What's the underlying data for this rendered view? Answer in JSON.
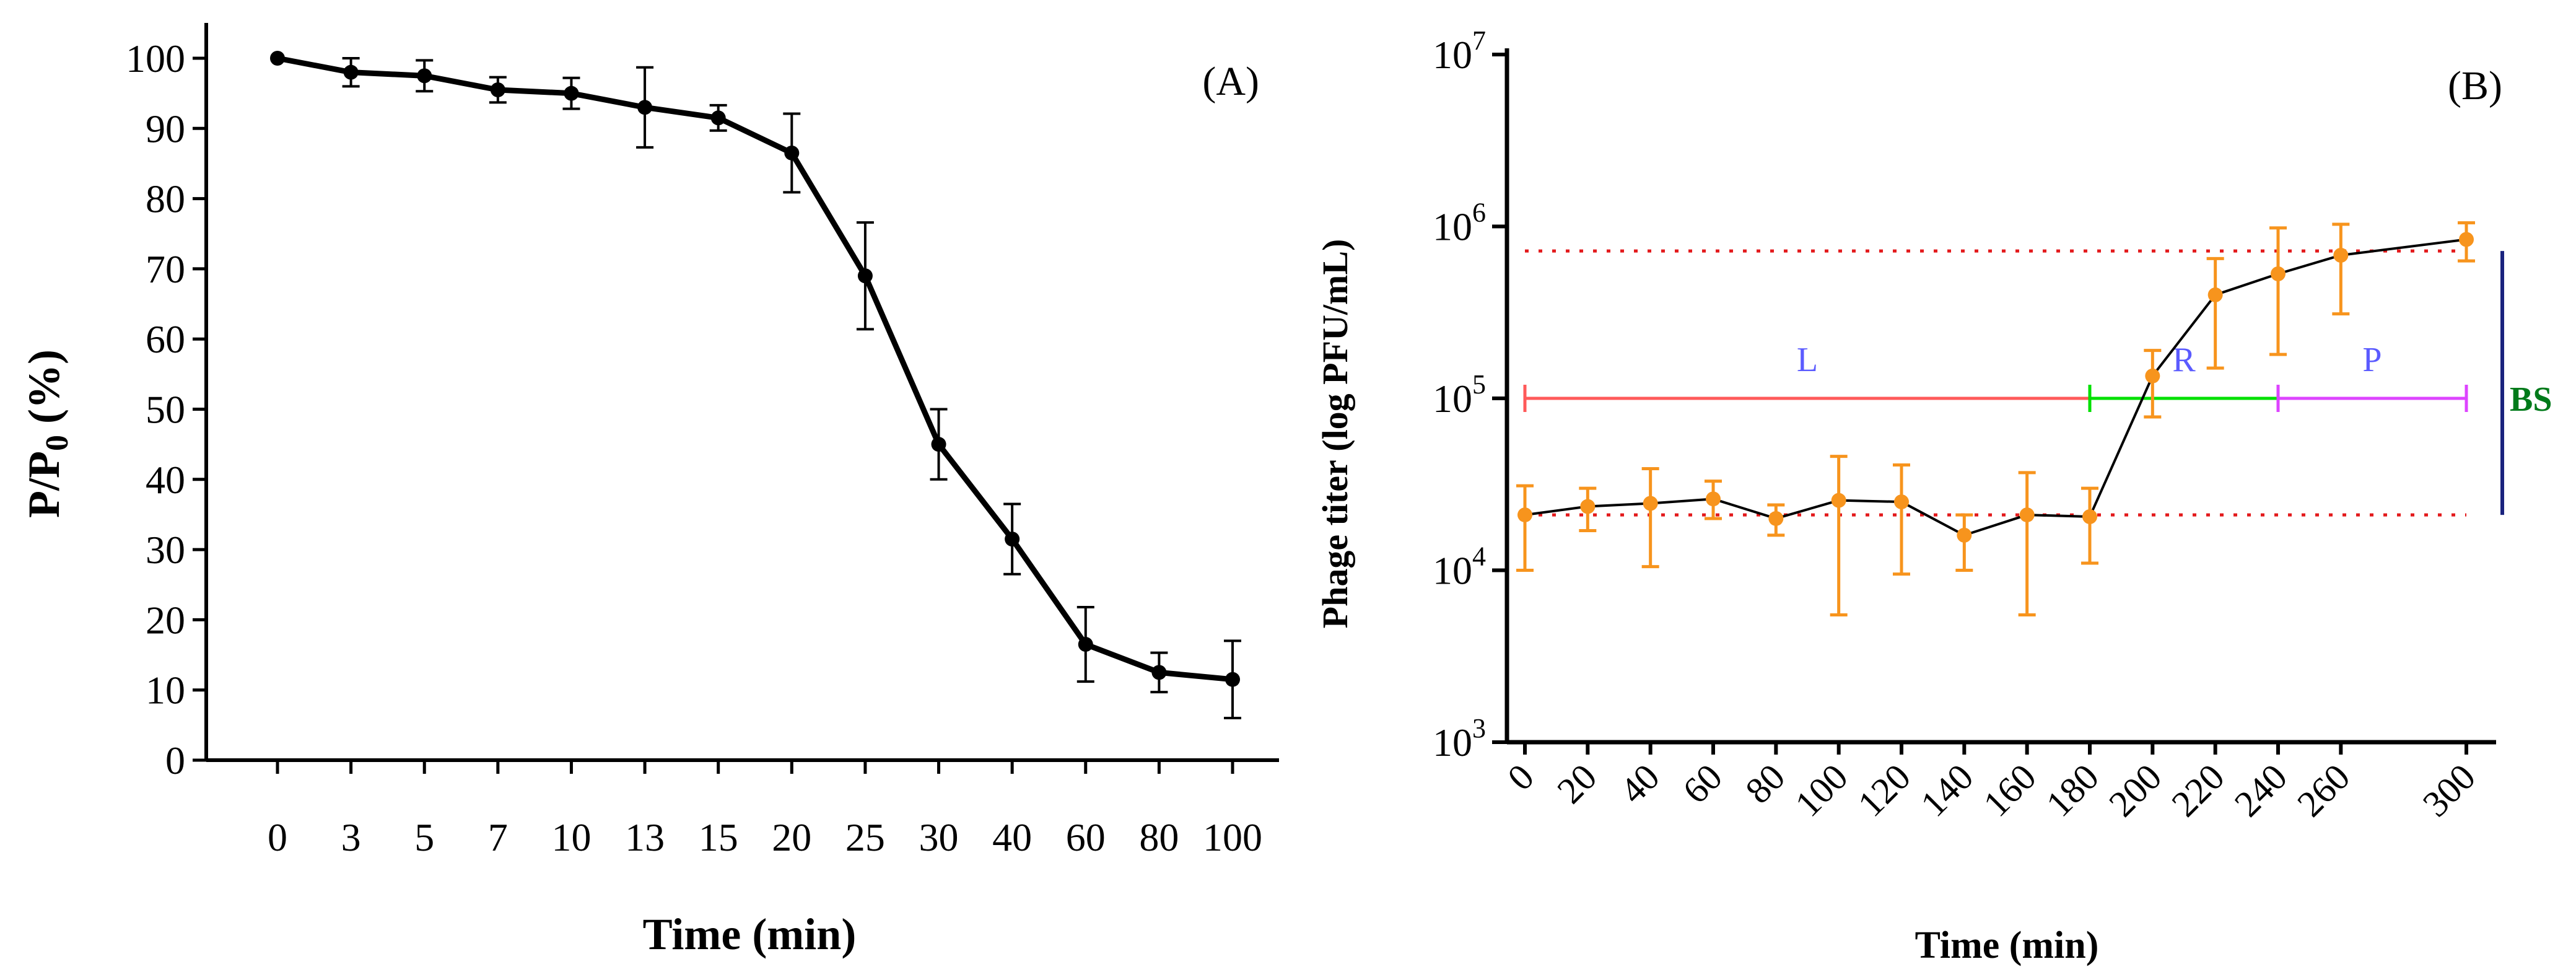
{
  "chart_data": [
    {
      "type": "line",
      "panel_label": "(A)",
      "title": "",
      "xlabel": "Time (min)",
      "ylabel": "P/P",
      "ylabel_subscript": "0",
      "ylabel_suffix": " (%)",
      "categories": [
        "0",
        "3",
        "5",
        "7",
        "10",
        "13",
        "15",
        "20",
        "25",
        "30",
        "40",
        "60",
        "80",
        "100"
      ],
      "values": [
        100,
        98,
        97.5,
        95.5,
        95,
        93,
        91.5,
        86.5,
        69,
        45,
        31.5,
        16.5,
        12.5,
        11.5
      ],
      "errors": [
        0,
        2,
        2.2,
        1.8,
        2.2,
        5.7,
        1.8,
        5.6,
        7.6,
        5,
        5,
        5.3,
        2.8,
        5.5
      ],
      "ylim": [
        0,
        100
      ],
      "yticks": [
        "0",
        "10",
        "20",
        "30",
        "40",
        "50",
        "60",
        "70",
        "80",
        "90",
        "100"
      ],
      "line_color": "#000000"
    },
    {
      "type": "line",
      "panel_label": "(B)",
      "title": "",
      "xlabel": "Time (min)",
      "ylabel": "Phage titer (log PFU/mL)",
      "yscale": "log",
      "x": [
        0,
        20,
        40,
        60,
        80,
        100,
        120,
        140,
        160,
        180,
        200,
        220,
        240,
        260,
        300
      ],
      "categories": [
        "0",
        "20",
        "40",
        "60",
        "80",
        "100",
        "120",
        "140",
        "160",
        "180",
        "200",
        "220",
        "240",
        "260",
        "300"
      ],
      "values": [
        21000,
        23500,
        24500,
        26000,
        20000,
        25500,
        25000,
        16000,
        21000,
        20500,
        135000,
        400000,
        530000,
        680000,
        840000
      ],
      "err_low": [
        10000,
        17000,
        10500,
        20000,
        16000,
        5500,
        9500,
        10000,
        5500,
        11000,
        78000,
        150000,
        180000,
        310000,
        630000
      ],
      "err_high": [
        31000,
        30000,
        39000,
        33000,
        24000,
        46000,
        41000,
        21000,
        37000,
        30000,
        190000,
        650000,
        980000,
        1030000,
        1050000
      ],
      "yticks": [
        {
          "base": "10",
          "exp": "3"
        },
        {
          "base": "10",
          "exp": "4"
        },
        {
          "base": "10",
          "exp": "5"
        },
        {
          "base": "10",
          "exp": "6"
        },
        {
          "base": "10",
          "exp": "7"
        }
      ],
      "ylim": [
        1000,
        10000000
      ],
      "series_color": "#f7941d",
      "line_color": "#000000",
      "reference_lines": [
        {
          "name": "baseline",
          "y": 21000,
          "color": "#e31a1c"
        },
        {
          "name": "plateau",
          "y": 720000,
          "color": "#e31a1c"
        }
      ],
      "annotations": [
        {
          "label": "L",
          "x_start": 0,
          "x_end": 180,
          "y": 100000,
          "line_color": "#ff5a5a",
          "text_color": "#5b5bff"
        },
        {
          "label": "R",
          "x_start": 180,
          "x_end": 240,
          "y": 100000,
          "line_color": "#00e000",
          "text_color": "#5b5bff"
        },
        {
          "label": "P",
          "x_start": 240,
          "x_end": 300,
          "y": 100000,
          "line_color": "#dd44ff",
          "text_color": "#5b5bff"
        },
        {
          "label": "BS",
          "y_start": 21000,
          "y_end": 720000,
          "line_color": "#1a237e",
          "text_color": "#007a1a"
        }
      ]
    }
  ]
}
